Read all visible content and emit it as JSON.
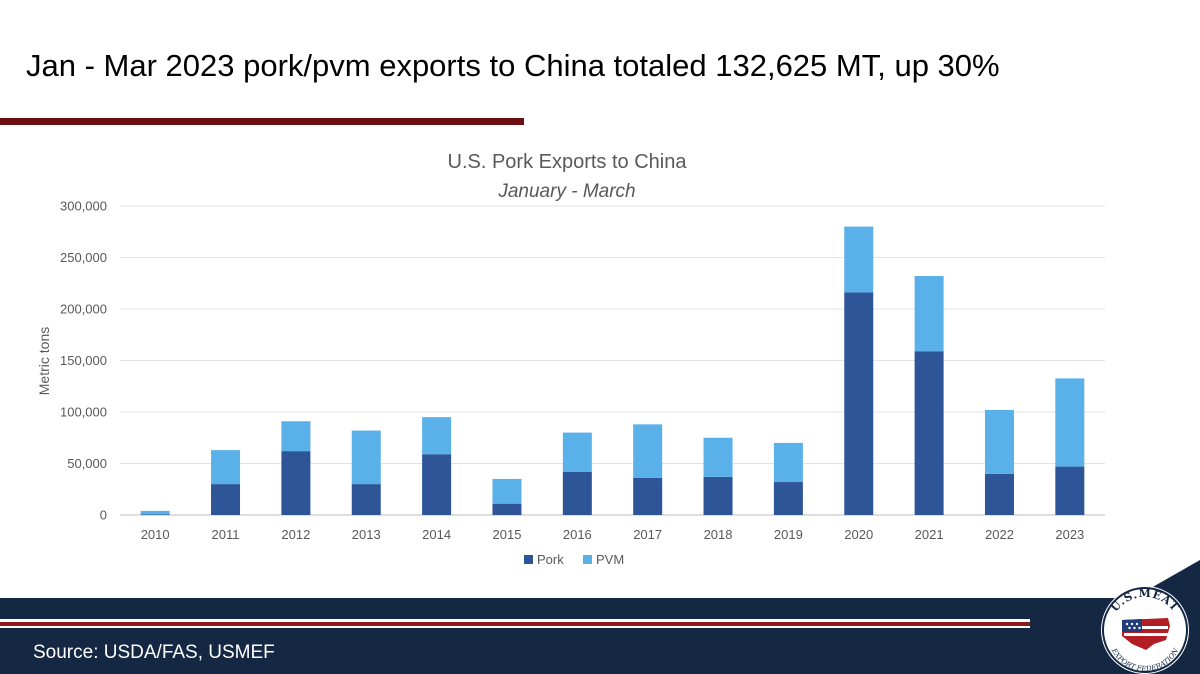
{
  "slide": {
    "headline": "Jan - Mar 2023 pork/pvm exports to China totaled 132,625 MT, up 30%",
    "source": "Source: USDA/FAS, USMEF"
  },
  "logo": {
    "top_text": "U.S.MEAT",
    "bottom_text": "EXPORT FEDERATION"
  },
  "colors": {
    "rule": "#6b0f12",
    "footer": "#142743",
    "pork": "#2e5597",
    "pvm": "#5ab0e9"
  },
  "chart_data": {
    "type": "bar",
    "stacked": true,
    "title": "U.S. Pork Exports to China",
    "subtitle": "January - March",
    "xlabel": "",
    "ylabel": "Metric tons",
    "ylim": [
      0,
      300000
    ],
    "yticks": [
      "0",
      "50,000",
      "100,000",
      "150,000",
      "200,000",
      "250,000",
      "300,000"
    ],
    "grid": true,
    "legend_position": "bottom",
    "categories": [
      "2010",
      "2011",
      "2012",
      "2013",
      "2014",
      "2015",
      "2016",
      "2017",
      "2018",
      "2019",
      "2020",
      "2021",
      "2022",
      "2023"
    ],
    "series": [
      {
        "name": "Pork",
        "color": "#2e5597",
        "values": [
          500,
          30000,
          62000,
          30000,
          59000,
          11000,
          42000,
          36000,
          37000,
          32000,
          216000,
          159000,
          40000,
          47000
        ]
      },
      {
        "name": "PVM",
        "color": "#5ab0e9",
        "values": [
          3500,
          33000,
          29000,
          52000,
          36000,
          24000,
          38000,
          52000,
          38000,
          38000,
          64000,
          73000,
          62000,
          85625
        ]
      }
    ]
  }
}
